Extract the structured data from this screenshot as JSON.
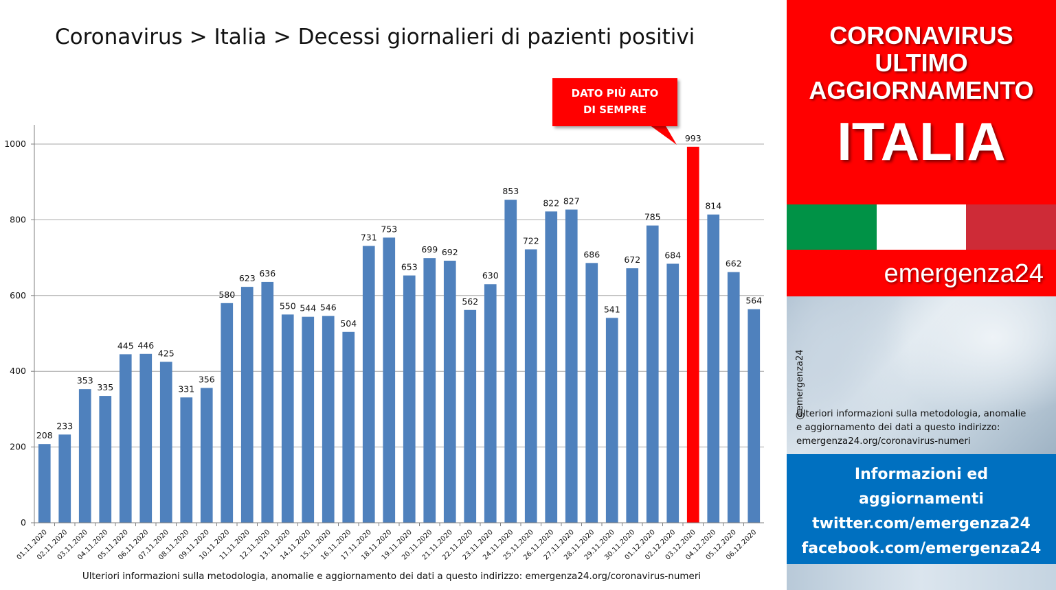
{
  "chart_data": {
    "type": "bar",
    "title": "Coronavirus > Italia > Decessi giornalieri di pazienti positivi",
    "categories": [
      "01.11.2020",
      "02.11.2020",
      "03.11.2020",
      "04.11.2020",
      "05.11.2020",
      "06.11.2020",
      "07.11.2020",
      "08.11.2020",
      "09.11.2020",
      "10.11.2020",
      "11.11.2020",
      "12.11.2020",
      "13.11.2020",
      "14.11.2020",
      "15.11.2020",
      "16.11.2020",
      "17.11.2020",
      "18.11.2020",
      "19.11.2020",
      "20.11.2020",
      "21.11.2020",
      "22.11.2020",
      "23.11.2020",
      "24.11.2020",
      "25.11.2020",
      "26.11.2020",
      "27.11.2020",
      "28.11.2020",
      "29.11.2020",
      "30.11.2020",
      "01.12.2020",
      "02.12.2020",
      "03.12.2020",
      "04.12.2020",
      "05.12.2020",
      "06.12.2020"
    ],
    "values": [
      208,
      233,
      353,
      335,
      445,
      446,
      425,
      331,
      356,
      580,
      623,
      636,
      550,
      544,
      546,
      504,
      731,
      753,
      653,
      699,
      692,
      562,
      630,
      853,
      722,
      822,
      827,
      686,
      541,
      672,
      785,
      684,
      993,
      814,
      662,
      564
    ],
    "highlight_index": 32,
    "ylim": [
      0,
      1000
    ],
    "yticks": [
      0,
      200,
      400,
      600,
      800,
      1000
    ],
    "grid": true,
    "colors": {
      "bar": "#4f81bd",
      "highlight": "#ff0000",
      "grid": "#a6a6a6"
    },
    "annotation": {
      "line1": "DATO PIÙ ALTO",
      "line2": "DI SEMPRE",
      "target_index": 32
    },
    "footnote": "Ulteriori informazioni sulla metodologia, anomalie e aggiornamento dei dati a questo indirizzo: emergenza24.org/coronavirus-numeri"
  },
  "banner": {
    "line1": "CORONAVIRUS",
    "line2": "ULTIMO",
    "line3": "AGGIORNAMENTO",
    "country": "ITALIA"
  },
  "flag_colors": [
    "#009246",
    "#ffffff",
    "#ce2b37"
  ],
  "brand": "emergenza24",
  "handle": "@emergenza24",
  "side_note": {
    "line1": "Ulteriori informazioni sulla metodologia, anomalie",
    "line2": "e aggiornamento dei dati a questo indirizzo:",
    "line3": "emergenza24.org/coronavirus-numeri"
  },
  "info_box": {
    "line1": "Informazioni ed",
    "line2": "aggiornamenti",
    "line3": "twitter.com/emergenza24",
    "line4": "facebook.com/emergenza24"
  }
}
